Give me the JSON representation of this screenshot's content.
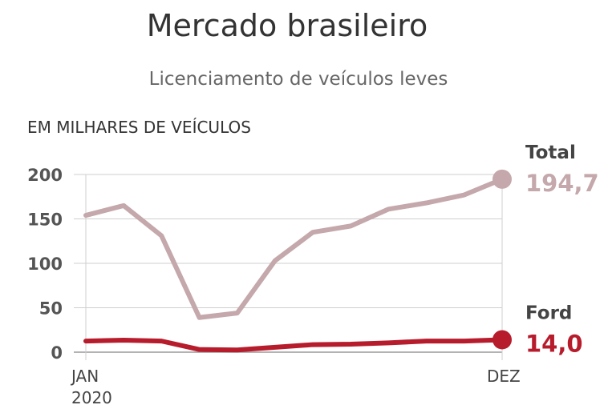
{
  "chart_data": {
    "type": "line",
    "title": "Mercado brasileiro",
    "subtitle": "Licenciamento de veículos leves",
    "ylabel": "EM MILHARES DE VEÍCULOS",
    "ylim": [
      0,
      200
    ],
    "yticks": [
      0,
      50,
      100,
      150,
      200
    ],
    "xlabels": {
      "start": "JAN",
      "start_year": "2020",
      "end": "DEZ"
    },
    "grid": true,
    "x": [
      1,
      2,
      3,
      4,
      5,
      6,
      7,
      8,
      9,
      10,
      11,
      12
    ],
    "series": [
      {
        "name": "Total",
        "color": "#c4a8ab",
        "values": [
          154,
          165,
          131,
          39,
          44,
          103,
          135,
          142,
          161,
          168,
          177,
          194.7
        ],
        "end_label": "194,7"
      },
      {
        "name": "Ford",
        "color": "#b71c2c",
        "values": [
          12.5,
          13.5,
          12.5,
          3,
          2.5,
          5.5,
          8.5,
          9,
          10.5,
          12.5,
          12.5,
          14.0
        ],
        "end_label": "14,0"
      }
    ]
  }
}
